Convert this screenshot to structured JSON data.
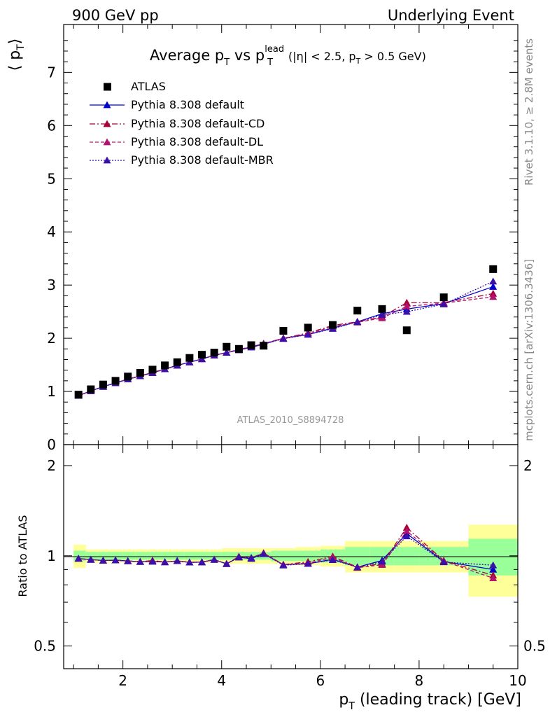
{
  "header": {
    "left": "900 GeV pp",
    "right": "Underlying Event"
  },
  "side_labels": {
    "rivet": "Rivet 3.1.10, ≥ 2.8M events",
    "mcplots": "mcplots.cern.ch [arXiv:1306.3436]"
  },
  "watermark": "ATLAS_2010_S8894728",
  "chart_data": {
    "type": "scatter",
    "title_parts": {
      "a": "Average p",
      "a_sub": "T",
      "b": " vs p",
      "b_sup": "lead",
      "b_sub": "T",
      "cut": "(|η| < 2.5, p",
      "cut_sub": "T",
      "cut_end": " > 0.5 GeV)"
    },
    "ylabel_main": "⟨ p",
    "ylabel_main_sub": "T",
    "ylabel_main_end": "⟩",
    "ylabel_ratio": "Ratio to ATLAS",
    "xlabel": "p",
    "xlabel_sub": "T",
    "xlabel_end": " (leading track) [GeV]",
    "xlim": [
      0.8,
      10.0
    ],
    "ylim_main": [
      0,
      7.9
    ],
    "ylim_ratio": [
      0.42,
      2.35
    ],
    "xticks": [
      "2",
      "4",
      "6",
      "8",
      "10"
    ],
    "yticks_main": [
      "0",
      "1",
      "2",
      "3",
      "4",
      "5",
      "6",
      "7"
    ],
    "yticks_ratio": [
      "0.5",
      "1",
      "2"
    ],
    "x": [
      1.1,
      1.35,
      1.6,
      1.85,
      2.1,
      2.35,
      2.6,
      2.85,
      3.1,
      3.35,
      3.6,
      3.85,
      4.1,
      4.35,
      4.6,
      4.85,
      5.25,
      5.75,
      6.25,
      6.75,
      7.25,
      7.75,
      8.5,
      9.5
    ],
    "bin_edges": [
      1.0,
      1.25,
      1.5,
      1.75,
      2.0,
      2.25,
      2.5,
      2.75,
      3.0,
      3.25,
      3.5,
      3.75,
      4.0,
      4.25,
      4.5,
      4.75,
      5.0,
      5.5,
      6.0,
      6.5,
      7.0,
      7.5,
      8.0,
      9.0,
      10.0
    ],
    "band_inner": [
      0.04,
      0.03,
      0.03,
      0.03,
      0.03,
      0.03,
      0.03,
      0.03,
      0.03,
      0.03,
      0.03,
      0.03,
      0.03,
      0.03,
      0.03,
      0.03,
      0.04,
      0.04,
      0.05,
      0.07,
      0.07,
      0.07,
      0.07,
      0.14
    ],
    "band_outer": [
      0.09,
      0.05,
      0.05,
      0.05,
      0.05,
      0.05,
      0.05,
      0.05,
      0.05,
      0.05,
      0.05,
      0.05,
      0.06,
      0.06,
      0.06,
      0.06,
      0.06,
      0.07,
      0.08,
      0.12,
      0.12,
      0.12,
      0.12,
      0.27
    ],
    "series": [
      {
        "name": "ATLAS",
        "marker": "square",
        "color": "#000000",
        "values": [
          0.94,
          1.04,
          1.13,
          1.2,
          1.28,
          1.35,
          1.41,
          1.49,
          1.55,
          1.63,
          1.69,
          1.73,
          1.84,
          1.8,
          1.87,
          1.86,
          2.14,
          2.2,
          2.25,
          2.52,
          2.55,
          2.15,
          2.77,
          3.3
        ]
      },
      {
        "name": "Pythia 8.308 default",
        "marker": "triangle",
        "color": "#0000cc",
        "line": "solid",
        "values": [
          0.92,
          1.01,
          1.09,
          1.16,
          1.23,
          1.29,
          1.35,
          1.42,
          1.49,
          1.55,
          1.61,
          1.68,
          1.73,
          1.78,
          1.83,
          1.89,
          2.0,
          2.07,
          2.19,
          2.31,
          2.46,
          2.55,
          2.65,
          2.97
        ]
      },
      {
        "name": "Pythia 8.308 default-CD",
        "marker": "triangle",
        "color": "#a8003a",
        "line": "dashdot",
        "values": [
          0.92,
          1.01,
          1.09,
          1.16,
          1.23,
          1.29,
          1.36,
          1.42,
          1.49,
          1.55,
          1.61,
          1.68,
          1.73,
          1.79,
          1.84,
          1.9,
          2.0,
          2.1,
          2.24,
          2.31,
          2.4,
          2.67,
          2.67,
          2.84
        ]
      },
      {
        "name": "Pythia 8.308 default-DL",
        "marker": "triangle",
        "color": "#b0146e",
        "line": "dashed",
        "values": [
          0.92,
          1.01,
          1.09,
          1.16,
          1.23,
          1.29,
          1.35,
          1.42,
          1.49,
          1.55,
          1.61,
          1.68,
          1.73,
          1.78,
          1.84,
          1.9,
          2.0,
          2.08,
          2.22,
          2.3,
          2.38,
          2.6,
          2.66,
          2.78
        ]
      },
      {
        "name": "Pythia 8.308 default-MBR",
        "marker": "triangle",
        "color": "#3a10a8",
        "line": "dotted",
        "values": [
          0.92,
          1.01,
          1.09,
          1.16,
          1.23,
          1.29,
          1.35,
          1.42,
          1.49,
          1.55,
          1.61,
          1.68,
          1.73,
          1.78,
          1.84,
          1.89,
          1.99,
          2.07,
          2.18,
          2.31,
          2.44,
          2.5,
          2.64,
          3.07
        ]
      }
    ]
  }
}
